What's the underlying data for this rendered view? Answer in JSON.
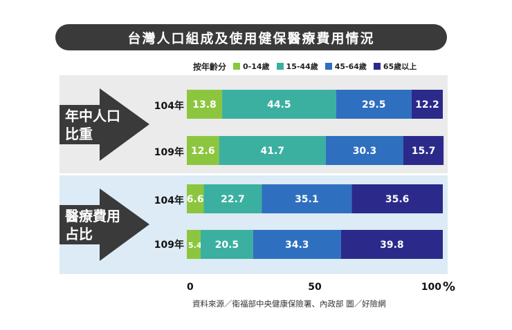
{
  "title": "台灣人口組成及使用健保醫療費用情況",
  "legend": {
    "title": "按年齡分",
    "items": [
      {
        "label": "0-14歲",
        "color": "#8cc63f"
      },
      {
        "label": "15-44歲",
        "color": "#3bb0a0"
      },
      {
        "label": "45-64歲",
        "color": "#2f6fbf"
      },
      {
        "label": "65歲以上",
        "color": "#2b2a8a"
      }
    ]
  },
  "groups": [
    {
      "label_line1": "年中人口",
      "label_line2": "比重"
    },
    {
      "label_line1": "醫療費用",
      "label_line2": "占比"
    }
  ],
  "x_axis": {
    "tick_0": "0",
    "tick_50": "50",
    "tick_100": "100",
    "unit": "%"
  },
  "source": "資料來源／衛福部中央健康保險署、內政部 圖／好險網",
  "chart_data": {
    "type": "bar",
    "stacked": true,
    "orientation": "horizontal",
    "title": "台灣人口組成及使用健保醫療費用情況",
    "x_range": [
      0,
      100
    ],
    "x_ticks": [
      "0",
      "50",
      "100"
    ],
    "x_unit": "%",
    "legend_title": "按年齡分",
    "legend_position": "top",
    "series_names": [
      "0-14歲",
      "15-44歲",
      "45-64歲",
      "65歲以上"
    ],
    "colors": [
      "#8cc63f",
      "#3bb0a0",
      "#2f6fbf",
      "#2b2a8a"
    ],
    "rows": [
      {
        "group": "年中人口比重",
        "year": "104年",
        "values": [
          13.8,
          44.5,
          29.5,
          12.2
        ]
      },
      {
        "group": "年中人口比重",
        "year": "109年",
        "values": [
          12.6,
          41.7,
          30.3,
          15.7
        ]
      },
      {
        "group": "醫療費用占比",
        "year": "104年",
        "values": [
          6.6,
          22.7,
          35.1,
          35.6
        ]
      },
      {
        "group": "醫療費用占比",
        "year": "109年",
        "values": [
          5.4,
          20.5,
          34.3,
          39.8
        ]
      }
    ]
  }
}
